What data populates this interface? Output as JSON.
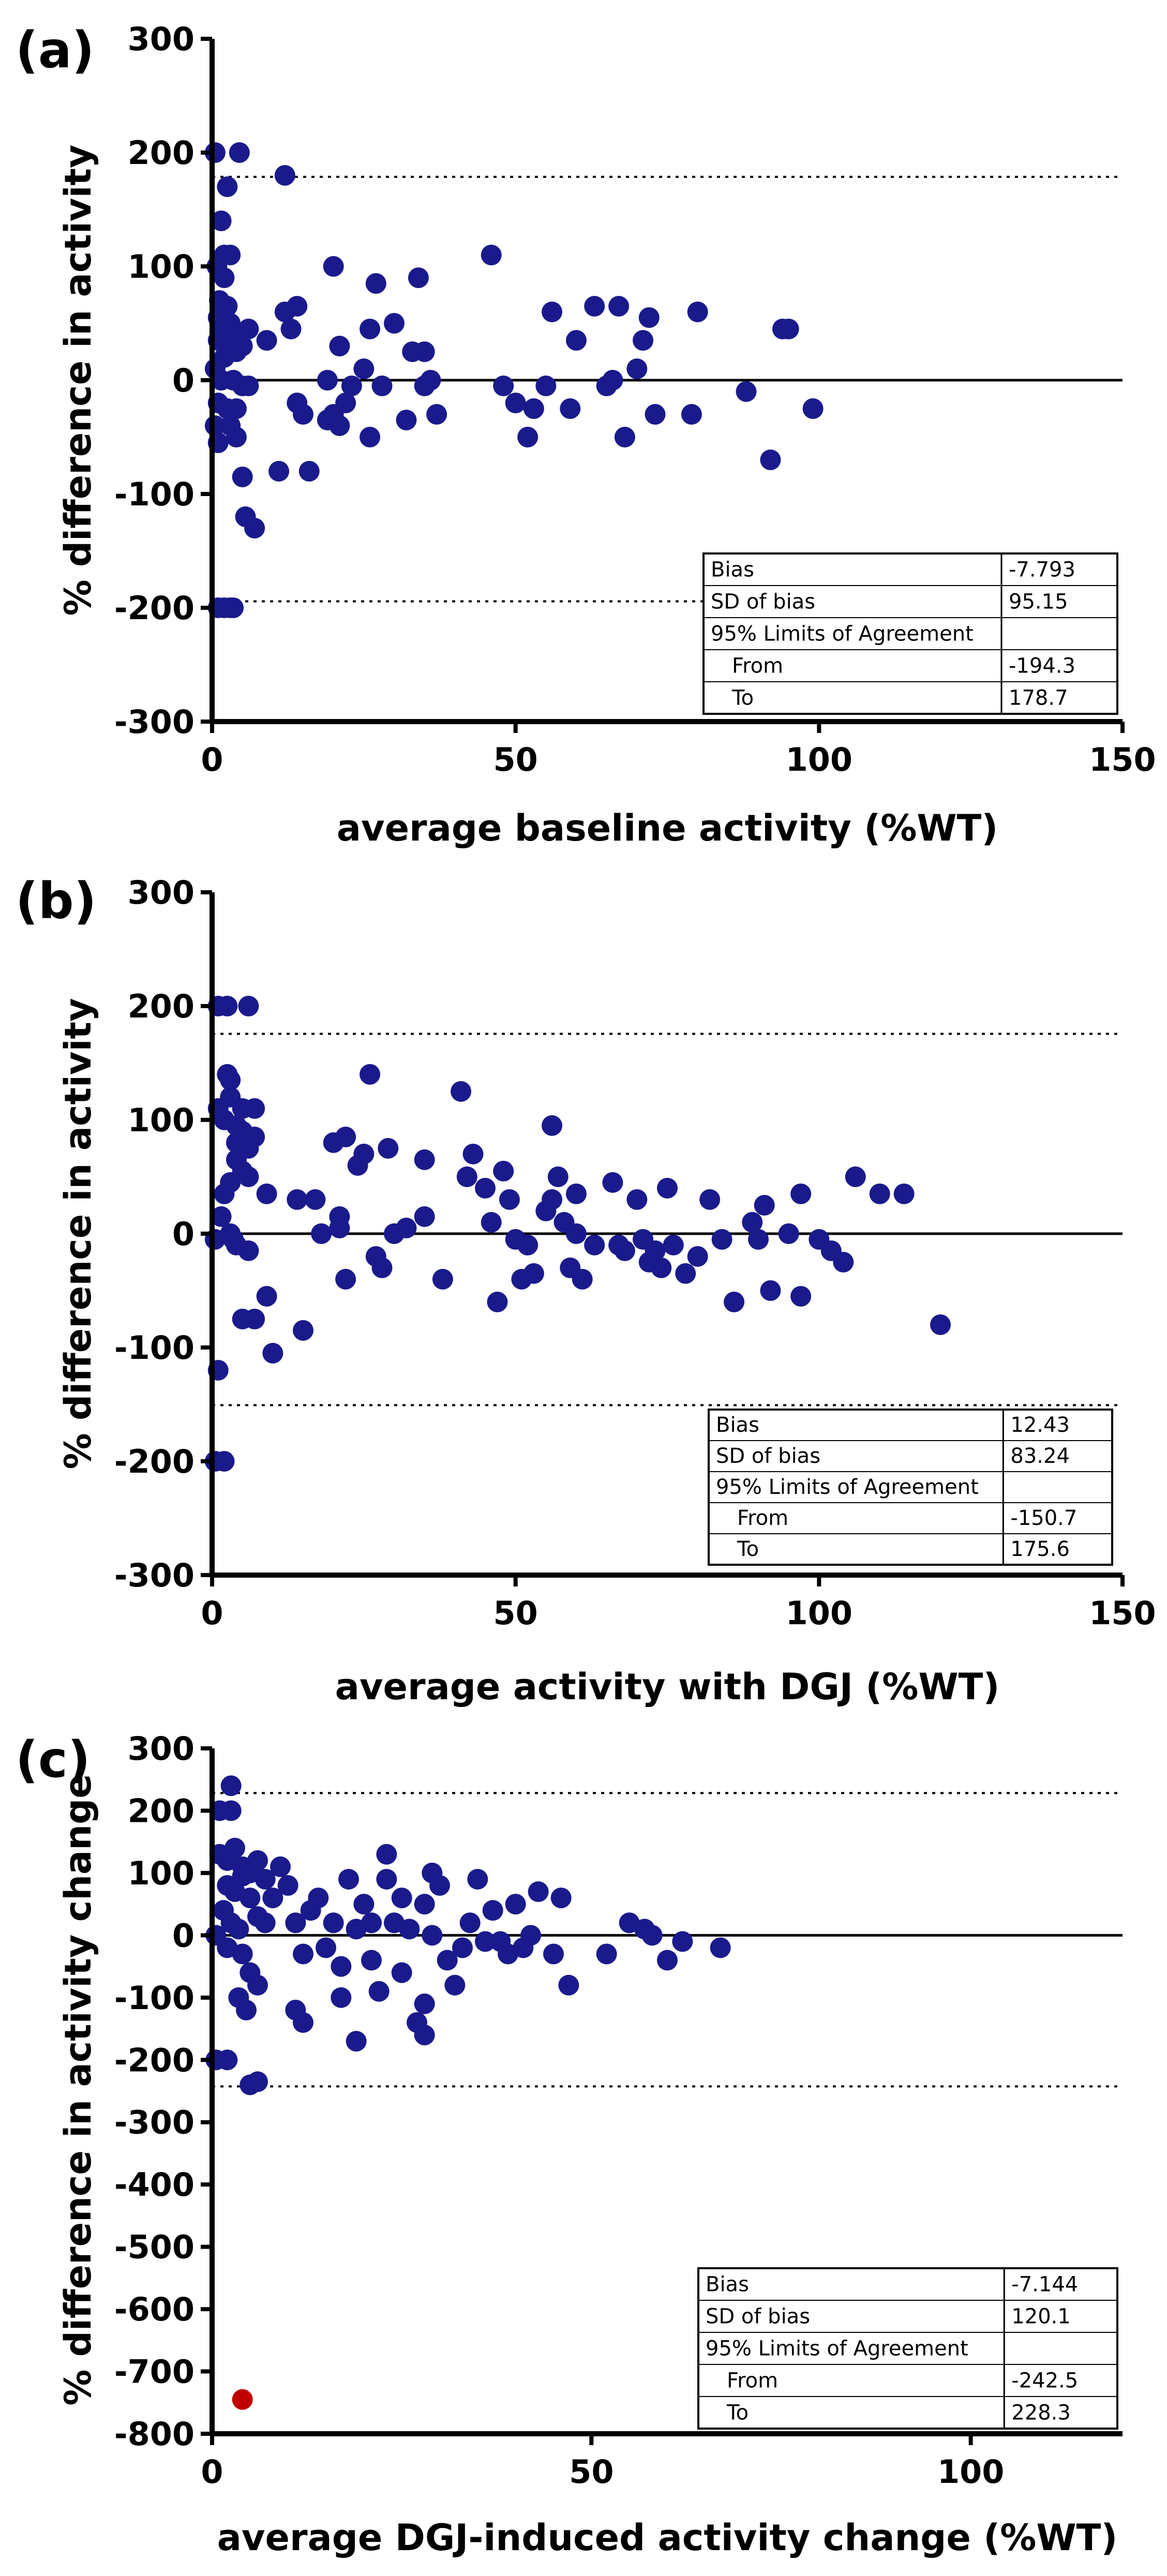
{
  "colors": {
    "point": "#1a1a8c",
    "outlier": "#c00000",
    "axis": "#000000",
    "table_border": "#000000"
  },
  "chart_data": [
    {
      "panel_label": "(a)",
      "type": "scatter",
      "title": "",
      "xlabel": "average baseline activity (%WT)",
      "ylabel": "% difference in activity",
      "xlim": [
        0,
        150
      ],
      "ylim": [
        -300,
        300
      ],
      "xticks": [
        "0",
        "50",
        "100",
        "150"
      ],
      "yticks": [
        "-300",
        "-200",
        "-100",
        "0",
        "100",
        "200",
        "300"
      ],
      "bias_line": 0,
      "upper_loa": 178.7,
      "lower_loa": -194.3,
      "stats_table": {
        "rows": [
          {
            "label": "Bias",
            "value": "-7.793"
          },
          {
            "label": "SD of bias",
            "value": "95.15"
          },
          {
            "label": "95% Limits of Agreement",
            "value": ""
          },
          {
            "label": "From",
            "value": "-194.3"
          },
          {
            "label": "To",
            "value": "178.7"
          }
        ]
      },
      "points": [
        [
          0.5,
          200
        ],
        [
          1,
          -200
        ],
        [
          2,
          -200
        ],
        [
          3,
          -200
        ],
        [
          3.5,
          -200
        ],
        [
          4.5,
          200
        ],
        [
          12,
          180
        ],
        [
          2.5,
          170
        ],
        [
          1.5,
          140
        ],
        [
          2,
          110
        ],
        [
          3,
          110
        ],
        [
          0.8,
          100
        ],
        [
          2,
          90
        ],
        [
          1.2,
          70
        ],
        [
          2.5,
          65
        ],
        [
          1,
          55
        ],
        [
          3,
          50
        ],
        [
          1.5,
          40
        ],
        [
          4,
          40
        ],
        [
          6,
          45
        ],
        [
          1,
          35
        ],
        [
          3,
          30
        ],
        [
          5,
          30
        ],
        [
          2,
          20
        ],
        [
          4,
          25
        ],
        [
          0.5,
          10
        ],
        [
          1.5,
          0
        ],
        [
          3.5,
          0
        ],
        [
          5,
          -5
        ],
        [
          6,
          -5
        ],
        [
          1,
          -20
        ],
        [
          2.5,
          -25
        ],
        [
          4,
          -25
        ],
        [
          0.5,
          -40
        ],
        [
          3,
          -40
        ],
        [
          4,
          -50
        ],
        [
          1,
          -55
        ],
        [
          5,
          -85
        ],
        [
          5.5,
          -120
        ],
        [
          7,
          -130
        ],
        [
          9,
          35
        ],
        [
          11,
          -80
        ],
        [
          12,
          60
        ],
        [
          14,
          65
        ],
        [
          13,
          45
        ],
        [
          15,
          -30
        ],
        [
          14,
          -20
        ],
        [
          16,
          -80
        ],
        [
          19,
          0
        ],
        [
          20,
          100
        ],
        [
          21,
          30
        ],
        [
          22,
          -20
        ],
        [
          20,
          -30
        ],
        [
          21,
          -40
        ],
        [
          19,
          -35
        ],
        [
          23,
          -5
        ],
        [
          25,
          10
        ],
        [
          26,
          45
        ],
        [
          26,
          -50
        ],
        [
          27,
          85
        ],
        [
          28,
          -5
        ],
        [
          30,
          50
        ],
        [
          32,
          -35
        ],
        [
          33,
          25
        ],
        [
          34,
          90
        ],
        [
          35,
          25
        ],
        [
          35,
          -5
        ],
        [
          36,
          0
        ],
        [
          37,
          -30
        ],
        [
          46,
          110
        ],
        [
          48,
          -5
        ],
        [
          50,
          -20
        ],
        [
          52,
          -50
        ],
        [
          53,
          -25
        ],
        [
          55,
          -5
        ],
        [
          56,
          60
        ],
        [
          59,
          -25
        ],
        [
          60,
          35
        ],
        [
          63,
          65
        ],
        [
          65,
          -5
        ],
        [
          66,
          0
        ],
        [
          67,
          65
        ],
        [
          68,
          -50
        ],
        [
          70,
          10
        ],
        [
          71,
          35
        ],
        [
          72,
          55
        ],
        [
          73,
          -30
        ],
        [
          79,
          -30
        ],
        [
          80,
          60
        ],
        [
          88,
          -10
        ],
        [
          92,
          -70
        ],
        [
          94,
          45
        ],
        [
          95,
          45
        ],
        [
          99,
          -25
        ]
      ],
      "outliers": []
    },
    {
      "panel_label": "(b)",
      "type": "scatter",
      "title": "",
      "xlabel": "average activity with DGJ (%WT)",
      "ylabel": "% difference in activity",
      "xlim": [
        0,
        150
      ],
      "ylim": [
        -300,
        300
      ],
      "xticks": [
        "0",
        "50",
        "100",
        "150"
      ],
      "yticks": [
        "-300",
        "-200",
        "-100",
        "0",
        "100",
        "200",
        "300"
      ],
      "bias_line": 0,
      "upper_loa": 175.6,
      "lower_loa": -150.7,
      "stats_table": {
        "rows": [
          {
            "label": "Bias",
            "value": "12.43"
          },
          {
            "label": "SD of bias",
            "value": "83.24"
          },
          {
            "label": "95% Limits of Agreement",
            "value": ""
          },
          {
            "label": "From",
            "value": "-150.7"
          },
          {
            "label": "To",
            "value": "175.6"
          }
        ]
      },
      "points": [
        [
          1,
          200
        ],
        [
          2.5,
          200
        ],
        [
          6,
          200
        ],
        [
          0.5,
          -200
        ],
        [
          2,
          -200
        ],
        [
          2.5,
          140
        ],
        [
          3,
          135
        ],
        [
          1,
          110
        ],
        [
          3,
          120
        ],
        [
          5,
          110
        ],
        [
          7,
          110
        ],
        [
          2,
          100
        ],
        [
          4,
          95
        ],
        [
          4,
          80
        ],
        [
          5,
          90
        ],
        [
          6,
          75
        ],
        [
          7,
          85
        ],
        [
          4,
          65
        ],
        [
          5,
          55
        ],
        [
          6,
          50
        ],
        [
          3,
          45
        ],
        [
          2,
          35
        ],
        [
          1.5,
          15
        ],
        [
          3,
          0
        ],
        [
          0.5,
          -5
        ],
        [
          3.5,
          -5
        ],
        [
          4,
          -10
        ],
        [
          6,
          -15
        ],
        [
          1,
          -120
        ],
        [
          5,
          -75
        ],
        [
          7,
          -75
        ],
        [
          9,
          -55
        ],
        [
          10,
          -105
        ],
        [
          9,
          35
        ],
        [
          14,
          30
        ],
        [
          15,
          -85
        ],
        [
          17,
          30
        ],
        [
          18,
          0
        ],
        [
          20,
          80
        ],
        [
          21,
          5
        ],
        [
          21,
          15
        ],
        [
          22,
          85
        ],
        [
          22,
          -40
        ],
        [
          24,
          60
        ],
        [
          25,
          70
        ],
        [
          26,
          140
        ],
        [
          27,
          -20
        ],
        [
          28,
          -30
        ],
        [
          29,
          75
        ],
        [
          30,
          0
        ],
        [
          32,
          5
        ],
        [
          35,
          15
        ],
        [
          35,
          65
        ],
        [
          38,
          -40
        ],
        [
          41,
          125
        ],
        [
          42,
          50
        ],
        [
          43,
          70
        ],
        [
          45,
          40
        ],
        [
          46,
          10
        ],
        [
          47,
          -60
        ],
        [
          48,
          55
        ],
        [
          49,
          30
        ],
        [
          50,
          -5
        ],
        [
          51,
          -40
        ],
        [
          52,
          -10
        ],
        [
          53,
          -35
        ],
        [
          55,
          20
        ],
        [
          56,
          30
        ],
        [
          56,
          95
        ],
        [
          57,
          50
        ],
        [
          58,
          10
        ],
        [
          59,
          -30
        ],
        [
          60,
          0
        ],
        [
          60,
          35
        ],
        [
          61,
          -40
        ],
        [
          63,
          -10
        ],
        [
          66,
          45
        ],
        [
          67,
          -10
        ],
        [
          68,
          -15
        ],
        [
          70,
          30
        ],
        [
          71,
          -5
        ],
        [
          72,
          -25
        ],
        [
          73,
          -15
        ],
        [
          74,
          -30
        ],
        [
          75,
          40
        ],
        [
          76,
          -10
        ],
        [
          78,
          -35
        ],
        [
          80,
          -20
        ],
        [
          82,
          30
        ],
        [
          84,
          -5
        ],
        [
          86,
          -60
        ],
        [
          89,
          10
        ],
        [
          90,
          -5
        ],
        [
          91,
          25
        ],
        [
          92,
          -50
        ],
        [
          95,
          0
        ],
        [
          97,
          -55
        ],
        [
          97,
          35
        ],
        [
          100,
          -5
        ],
        [
          102,
          -15
        ],
        [
          104,
          -25
        ],
        [
          106,
          50
        ],
        [
          110,
          35
        ],
        [
          114,
          35
        ],
        [
          120,
          -80
        ]
      ],
      "outliers": []
    },
    {
      "panel_label": "(c)",
      "type": "scatter",
      "title": "",
      "xlabel": "average DGJ-induced activity change (%WT)",
      "ylabel": "% difference in activity change",
      "xlim": [
        0,
        120
      ],
      "ylim": [
        -800,
        300
      ],
      "xticks": [
        "0",
        "50",
        "100"
      ],
      "yticks": [
        "-800",
        "-700",
        "-600",
        "-500",
        "-400",
        "-300",
        "-200",
        "-100",
        "0",
        "100",
        "200",
        "300"
      ],
      "bias_line": 0,
      "upper_loa": 228.3,
      "lower_loa": -242.5,
      "stats_table": {
        "rows": [
          {
            "label": "Bias",
            "value": "-7.144"
          },
          {
            "label": "SD of bias",
            "value": "120.1"
          },
          {
            "label": "95% Limits of Agreement",
            "value": ""
          },
          {
            "label": "From",
            "value": "-242.5"
          },
          {
            "label": "To",
            "value": "228.3"
          }
        ]
      },
      "points": [
        [
          2.5,
          240
        ],
        [
          1,
          200
        ],
        [
          2.5,
          200
        ],
        [
          0.5,
          -200
        ],
        [
          2,
          -200
        ],
        [
          5,
          -240
        ],
        [
          6,
          -235
        ],
        [
          1,
          130
        ],
        [
          2,
          120
        ],
        [
          3,
          140
        ],
        [
          4,
          110
        ],
        [
          5,
          100
        ],
        [
          6,
          120
        ],
        [
          7,
          90
        ],
        [
          2,
          80
        ],
        [
          3,
          70
        ],
        [
          4,
          95
        ],
        [
          5,
          60
        ],
        [
          6,
          30
        ],
        [
          1.5,
          40
        ],
        [
          2.5,
          20
        ],
        [
          3.5,
          10
        ],
        [
          0.5,
          0
        ],
        [
          2,
          -20
        ],
        [
          4,
          -30
        ],
        [
          5,
          -60
        ],
        [
          6,
          -80
        ],
        [
          3.5,
          -100
        ],
        [
          4.5,
          -120
        ],
        [
          7,
          20
        ],
        [
          8,
          60
        ],
        [
          9,
          110
        ],
        [
          10,
          80
        ],
        [
          11,
          20
        ],
        [
          12,
          -30
        ],
        [
          11,
          -120
        ],
        [
          12,
          -140
        ],
        [
          13,
          40
        ],
        [
          14,
          60
        ],
        [
          15,
          -20
        ],
        [
          16,
          20
        ],
        [
          17,
          -50
        ],
        [
          17,
          -100
        ],
        [
          18,
          90
        ],
        [
          19,
          -170
        ],
        [
          19,
          10
        ],
        [
          20,
          50
        ],
        [
          21,
          20
        ],
        [
          21,
          -40
        ],
        [
          22,
          -90
        ],
        [
          23,
          90
        ],
        [
          23,
          130
        ],
        [
          24,
          20
        ],
        [
          25,
          -60
        ],
        [
          25,
          60
        ],
        [
          26,
          10
        ],
        [
          27,
          -140
        ],
        [
          28,
          -160
        ],
        [
          28,
          -110
        ],
        [
          28,
          50
        ],
        [
          29,
          100
        ],
        [
          29,
          0
        ],
        [
          30,
          80
        ],
        [
          31,
          -40
        ],
        [
          32,
          -80
        ],
        [
          33,
          -20
        ],
        [
          34,
          20
        ],
        [
          35,
          90
        ],
        [
          36,
          -10
        ],
        [
          37,
          40
        ],
        [
          38,
          -10
        ],
        [
          39,
          -30
        ],
        [
          40,
          50
        ],
        [
          41,
          -20
        ],
        [
          42,
          0
        ],
        [
          43,
          70
        ],
        [
          45,
          -30
        ],
        [
          46,
          60
        ],
        [
          47,
          -80
        ],
        [
          52,
          -30
        ],
        [
          55,
          20
        ],
        [
          57,
          10
        ],
        [
          58,
          0
        ],
        [
          60,
          -40
        ],
        [
          62,
          -10
        ],
        [
          67,
          -20
        ]
      ],
      "outliers": [
        [
          4,
          -745
        ]
      ]
    }
  ]
}
